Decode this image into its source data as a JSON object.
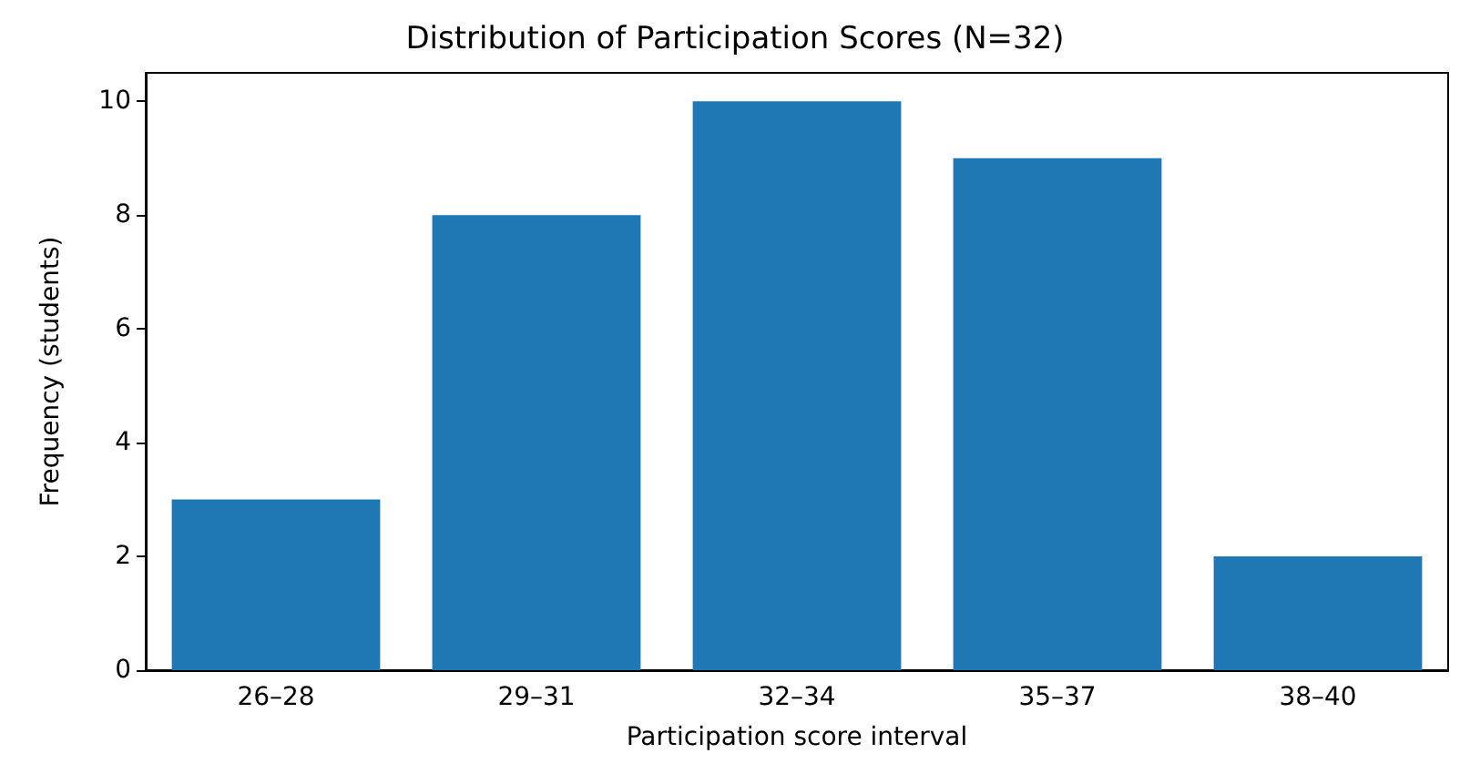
{
  "chart_data": {
    "type": "bar",
    "title": "Distribution of Participation Scores (N=32)",
    "xlabel": "Participation score interval",
    "ylabel": "Frequency (students)",
    "categories": [
      "26–28",
      "29–31",
      "32–34",
      "35–37",
      "38–40"
    ],
    "values": [
      3,
      8,
      10,
      9,
      2
    ],
    "color": "#1f77b4",
    "ylim": [
      0,
      10.5
    ],
    "yticks": [
      0,
      2,
      4,
      6,
      8,
      10
    ],
    "grid": false
  }
}
